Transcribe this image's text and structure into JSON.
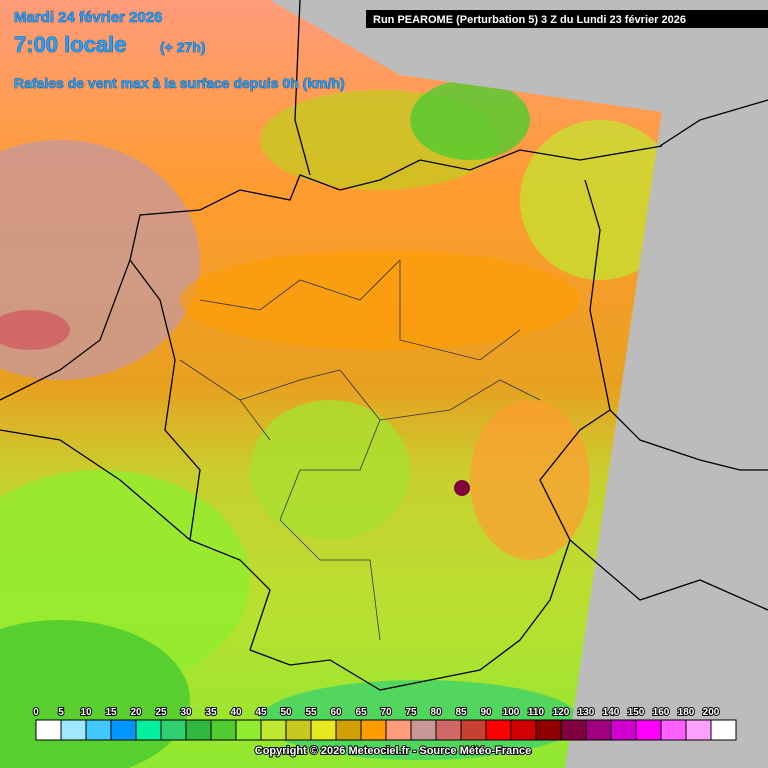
{
  "header": {
    "date": "Mardi 24 février 2026",
    "time": "7:00 locale",
    "lead": "(+ 27h)",
    "run": "Run PEAROME (Perturbation 5) 3 Z du Lundi 23 février 2026",
    "subtitle": "Rafales de vent max à la surface depuis 0h (km/h)"
  },
  "legend": {
    "ticks": [
      0,
      5,
      10,
      15,
      20,
      25,
      30,
      35,
      40,
      45,
      50,
      55,
      60,
      65,
      70,
      75,
      80,
      85,
      90,
      100,
      110,
      120,
      130,
      140,
      150,
      160,
      180,
      200
    ],
    "colors": [
      "#ffffff",
      "#a0e8ff",
      "#40c8ff",
      "#0096ff",
      "#00f0a0",
      "#30d070",
      "#30b840",
      "#50cc30",
      "#90ee30",
      "#c0e830",
      "#c8c820",
      "#e8e820",
      "#d0a000",
      "#ff9c00",
      "#ff9c7c",
      "#c89898",
      "#d06868",
      "#c84030",
      "#ff0000",
      "#d00000",
      "#900000",
      "#800040",
      "#a00080",
      "#d000d0",
      "#ff00ff",
      "#ff60ff",
      "#ffa0ff",
      "#ffffff"
    ]
  },
  "footer": {
    "copyright": "Copyright © 2026 Meteociel.fr - Source Météo-France"
  }
}
